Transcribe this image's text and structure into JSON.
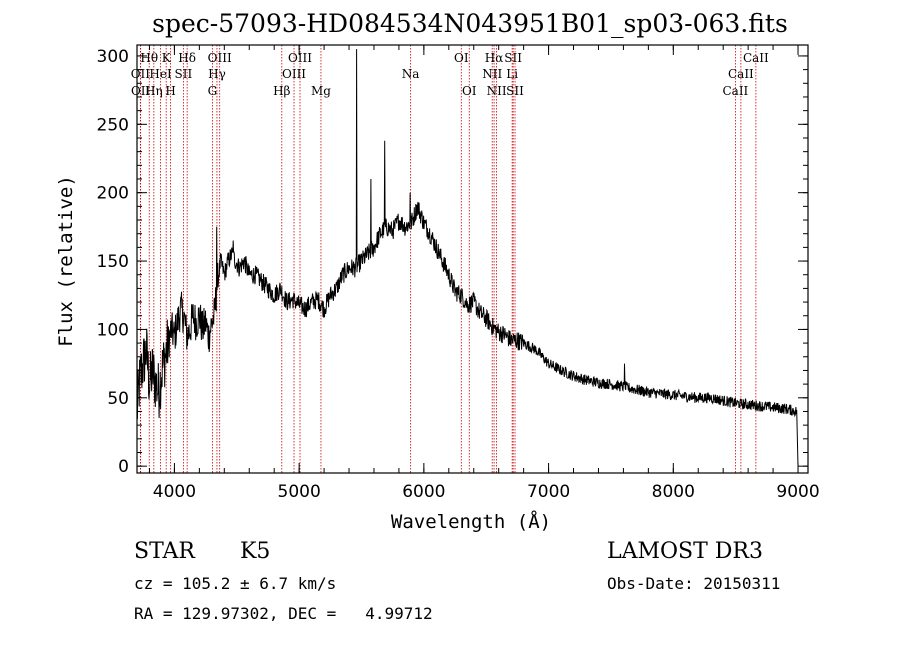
{
  "chart_data": {
    "type": "line",
    "title": "spec-57093-HD084534N043951B01_sp03-063.fits",
    "xlabel": "Wavelength (Å)",
    "ylabel": "Flux (relative)",
    "xlim": [
      3700,
      9080
    ],
    "ylim": [
      -5,
      308
    ],
    "xticks": [
      4000,
      5000,
      6000,
      7000,
      8000,
      9000
    ],
    "yticks": [
      0,
      50,
      100,
      150,
      200,
      250,
      300
    ],
    "minor_x_step": 200,
    "minor_y_step": 10,
    "spectrum_anchors": [
      [
        3700,
        40
      ],
      [
        3725,
        65
      ],
      [
        3750,
        75
      ],
      [
        3775,
        85
      ],
      [
        3800,
        60
      ],
      [
        3825,
        70
      ],
      [
        3850,
        60
      ],
      [
        3875,
        55
      ],
      [
        3900,
        70
      ],
      [
        3925,
        80
      ],
      [
        3950,
        90
      ],
      [
        3975,
        100
      ],
      [
        4000,
        95
      ],
      [
        4025,
        105
      ],
      [
        4050,
        115
      ],
      [
        4075,
        110
      ],
      [
        4100,
        95
      ],
      [
        4125,
        100
      ],
      [
        4150,
        110
      ],
      [
        4175,
        105
      ],
      [
        4200,
        110
      ],
      [
        4225,
        100
      ],
      [
        4250,
        105
      ],
      [
        4275,
        95
      ],
      [
        4300,
        105
      ],
      [
        4320,
        110
      ],
      [
        4340,
        130
      ],
      [
        4370,
        150
      ],
      [
        4400,
        140
      ],
      [
        4430,
        150
      ],
      [
        4460,
        155
      ],
      [
        4490,
        150
      ],
      [
        4520,
        145
      ],
      [
        4560,
        150
      ],
      [
        4600,
        140
      ],
      [
        4650,
        140
      ],
      [
        4700,
        135
      ],
      [
        4750,
        130
      ],
      [
        4800,
        125
      ],
      [
        4850,
        130
      ],
      [
        4900,
        120
      ],
      [
        4950,
        122
      ],
      [
        5000,
        118
      ],
      [
        5050,
        115
      ],
      [
        5100,
        120
      ],
      [
        5150,
        122
      ],
      [
        5200,
        115
      ],
      [
        5250,
        125
      ],
      [
        5300,
        130
      ],
      [
        5350,
        140
      ],
      [
        5400,
        145
      ],
      [
        5450,
        145
      ],
      [
        5500,
        150
      ],
      [
        5550,
        155
      ],
      [
        5600,
        160
      ],
      [
        5650,
        170
      ],
      [
        5700,
        175
      ],
      [
        5750,
        172
      ],
      [
        5800,
        180
      ],
      [
        5850,
        175
      ],
      [
        5900,
        178
      ],
      [
        5950,
        190
      ],
      [
        6000,
        178
      ],
      [
        6050,
        170
      ],
      [
        6100,
        160
      ],
      [
        6150,
        150
      ],
      [
        6200,
        140
      ],
      [
        6250,
        128
      ],
      [
        6300,
        125
      ],
      [
        6350,
        118
      ],
      [
        6400,
        120
      ],
      [
        6450,
        112
      ],
      [
        6500,
        108
      ],
      [
        6550,
        102
      ],
      [
        6600,
        98
      ],
      [
        6650,
        96
      ],
      [
        6700,
        92
      ],
      [
        6750,
        92
      ],
      [
        6800,
        90
      ],
      [
        6900,
        85
      ],
      [
        7000,
        75
      ],
      [
        7100,
        70
      ],
      [
        7200,
        66
      ],
      [
        7300,
        63
      ],
      [
        7400,
        61
      ],
      [
        7500,
        60
      ],
      [
        7600,
        58
      ],
      [
        7700,
        56
      ],
      [
        7800,
        54
      ],
      [
        7900,
        53
      ],
      [
        8000,
        52
      ],
      [
        8100,
        51
      ],
      [
        8200,
        50
      ],
      [
        8300,
        50
      ],
      [
        8400,
        48
      ],
      [
        8500,
        46
      ],
      [
        8600,
        45
      ],
      [
        8700,
        44
      ],
      [
        8800,
        43
      ],
      [
        8900,
        42
      ],
      [
        8990,
        40
      ],
      [
        9000,
        0
      ]
    ],
    "emission_spikes": [
      [
        4340,
        175
      ],
      [
        4470,
        165
      ],
      [
        5460,
        305
      ],
      [
        5685,
        238
      ],
      [
        5575,
        210
      ],
      [
        5890,
        200
      ],
      [
        7610,
        75
      ]
    ],
    "spectral_lines": [
      {
        "label": "Hθ",
        "wavelength": 3798,
        "row": 1
      },
      {
        "label": "OII",
        "wavelength": 3727,
        "row": 2
      },
      {
        "label": "OII",
        "wavelength": 3729,
        "row": 3
      },
      {
        "label": "Hη",
        "wavelength": 3835,
        "row": 3
      },
      {
        "label": "HeI",
        "wavelength": 3889,
        "row": 2
      },
      {
        "label": "K",
        "wavelength": 3934,
        "row": 1
      },
      {
        "label": "SII",
        "wavelength": 4072,
        "row": 2
      },
      {
        "label": "H",
        "wavelength": 3969,
        "row": 3
      },
      {
        "label": "Hδ",
        "wavelength": 4102,
        "row": 1
      },
      {
        "label": "OIII",
        "wavelength": 4363,
        "row": 1
      },
      {
        "label": "Hγ",
        "wavelength": 4341,
        "row": 2
      },
      {
        "label": "G",
        "wavelength": 4305,
        "row": 3
      },
      {
        "label": "Hβ",
        "wavelength": 4861,
        "row": 3
      },
      {
        "label": "OIII",
        "wavelength": 5007,
        "row": 1
      },
      {
        "label": "OIII",
        "wavelength": 4959,
        "row": 2
      },
      {
        "label": "Mg",
        "wavelength": 5175,
        "row": 3
      },
      {
        "label": "Na",
        "wavelength": 5894,
        "row": 2
      },
      {
        "label": "OI",
        "wavelength": 6300,
        "row": 1
      },
      {
        "label": "OI",
        "wavelength": 6364,
        "row": 3
      },
      {
        "label": "Hα",
        "wavelength": 6563,
        "row": 1
      },
      {
        "label": "NII",
        "wavelength": 6548,
        "row": 2
      },
      {
        "label": "NII",
        "wavelength": 6583,
        "row": 3
      },
      {
        "label": "SII",
        "wavelength": 6716,
        "row": 1
      },
      {
        "label": "Li",
        "wavelength": 6708,
        "row": 2
      },
      {
        "label": "SII",
        "wavelength": 6731,
        "row": 3
      },
      {
        "label": "CaII",
        "wavelength": 8662,
        "row": 1
      },
      {
        "label": "CaII",
        "wavelength": 8542,
        "row": 2
      },
      {
        "label": "CaII",
        "wavelength": 8498,
        "row": 3
      }
    ]
  },
  "info": {
    "object_class": "STAR",
    "subclass": "K5",
    "survey": "LAMOST DR3",
    "redshift_line": "cz = 105.2 ± 6.7 km/s",
    "obs_date_line": "Obs-Date: 20150311",
    "coords_line": "RA = 129.97302, DEC =   4.99712"
  },
  "colors": {
    "spectrum": "#000000",
    "line_markers": "#cc0000",
    "axes": "#000000"
  }
}
